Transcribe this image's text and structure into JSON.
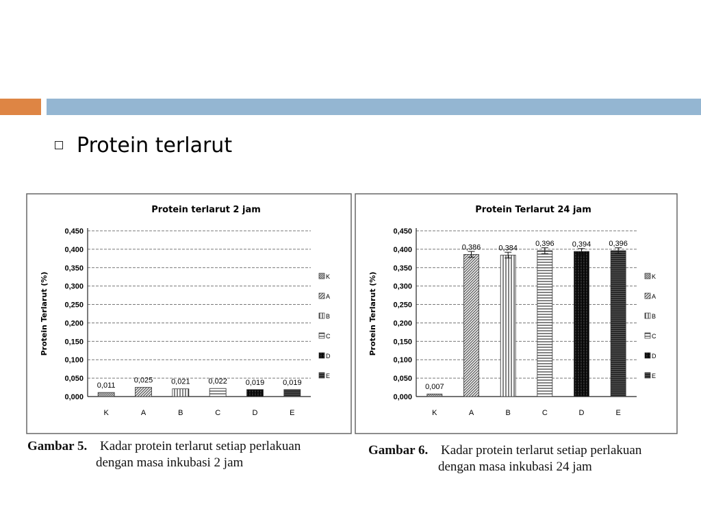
{
  "slide": {
    "bullet_text": "Protein terlarut",
    "accent_orange": "#de8544",
    "accent_blue": "#94b6d2"
  },
  "captions": [
    {
      "fig_num": "Gambar 5.",
      "line1": "Kadar protein terlarut setiap perlakuan",
      "line2": "dengan masa inkubasi 2 jam"
    },
    {
      "fig_num": "Gambar 6.",
      "line1": "Kadar protein terlarut setiap perlakuan",
      "line2": "dengan masa inkubasi 24 jam"
    }
  ],
  "chart_data": [
    {
      "type": "bar",
      "title": "Protein terlarut 2 jam",
      "ylabel": "Protein Terlarut (%)",
      "xlabel": "",
      "categories": [
        "K",
        "A",
        "B",
        "C",
        "D",
        "E"
      ],
      "values": [
        0.011,
        0.025,
        0.021,
        0.022,
        0.019,
        0.019
      ],
      "value_labels": [
        "0,011",
        "0,025",
        "0,021",
        "0,022",
        "0,019",
        "0,019"
      ],
      "ylim": [
        0,
        0.45
      ],
      "yticks": [
        "0,000",
        "0,050",
        "0,100",
        "0,150",
        "0,200",
        "0,250",
        "0,300",
        "0,350",
        "0,400",
        "0,450"
      ],
      "legend": [
        "K",
        "A",
        "B",
        "C",
        "D",
        "E"
      ],
      "legend_position": "right",
      "grid": true,
      "error_bars": false
    },
    {
      "type": "bar",
      "title": "Protein Terlarut 24 jam",
      "ylabel": "Protein Terlarut (%)",
      "xlabel": "",
      "categories": [
        "K",
        "A",
        "B",
        "C",
        "D",
        "E"
      ],
      "values": [
        0.007,
        0.386,
        0.384,
        0.396,
        0.394,
        0.396
      ],
      "value_labels": [
        "0,007",
        "0,386",
        "0,384",
        "0,396",
        "0,394",
        "0,396"
      ],
      "ylim": [
        0,
        0.45
      ],
      "yticks": [
        "0,000",
        "0,050",
        "0,100",
        "0,150",
        "0,200",
        "0,250",
        "0,300",
        "0,350",
        "0,400",
        "0,450"
      ],
      "legend": [
        "K",
        "A",
        "B",
        "C",
        "D",
        "E"
      ],
      "legend_position": "right",
      "grid": true,
      "error_bars": true
    }
  ]
}
